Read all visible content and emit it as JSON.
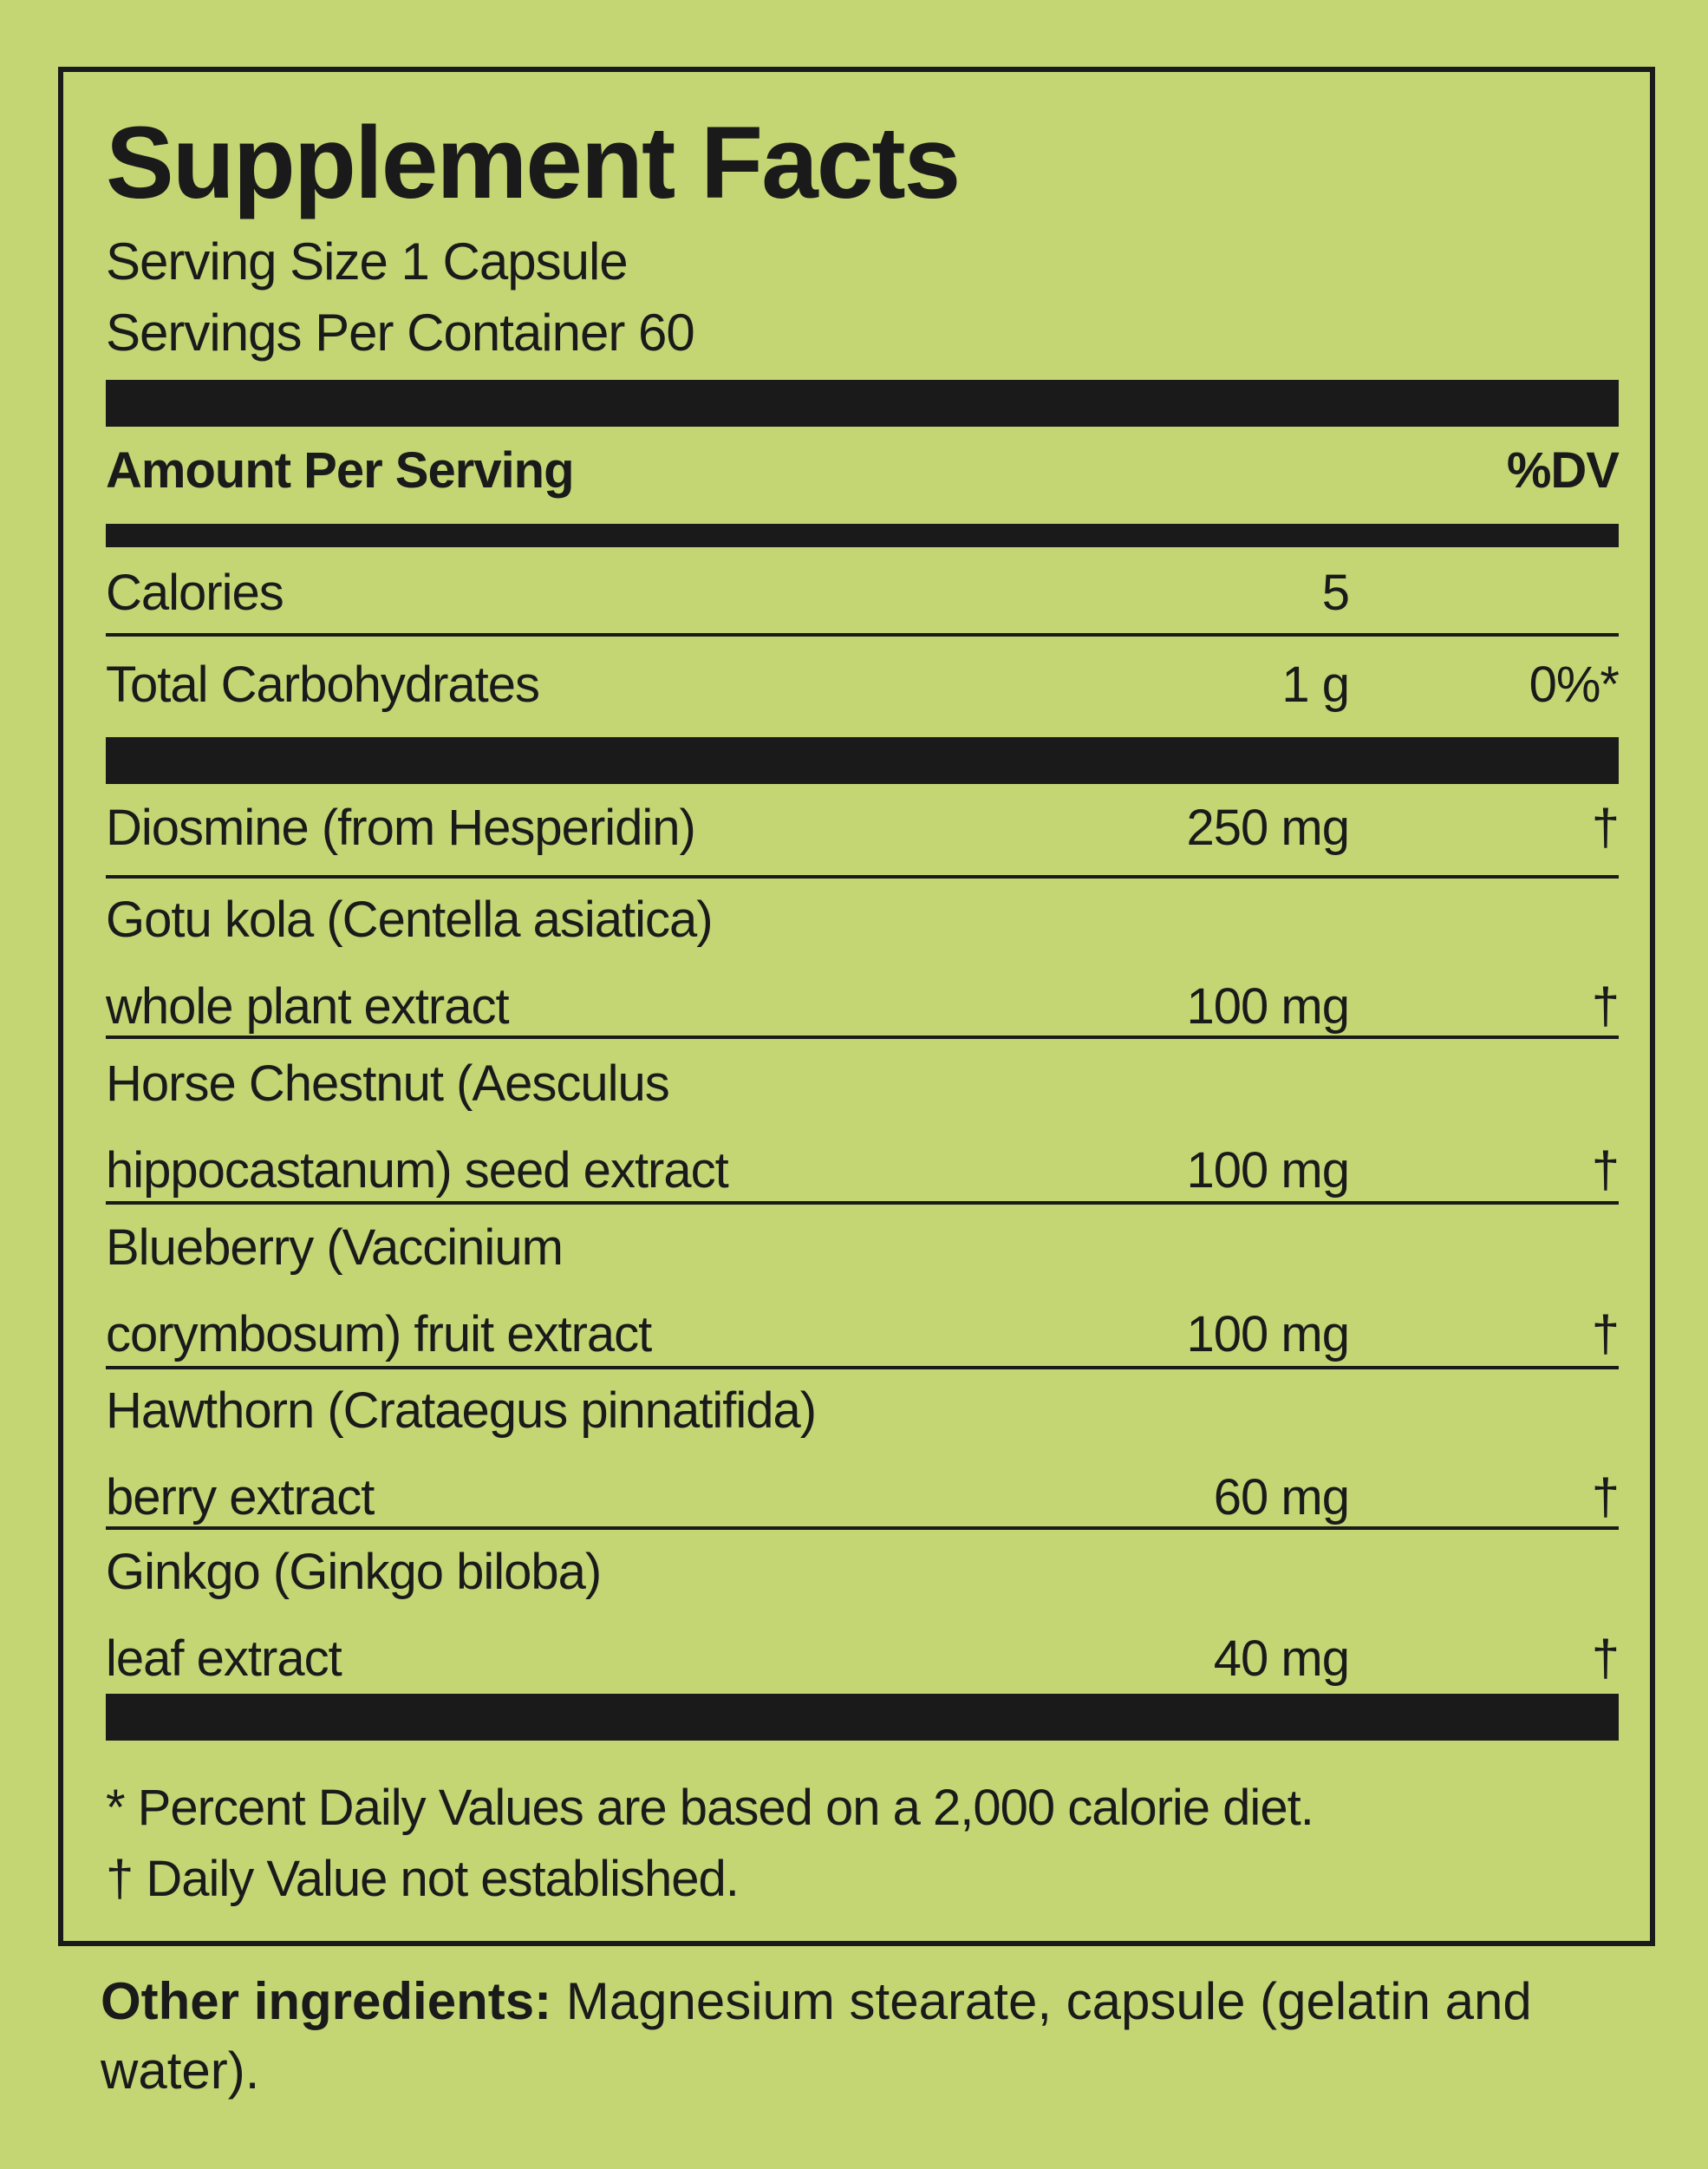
{
  "title": "Supplement Facts",
  "serving_size": "Serving Size 1 Capsule",
  "servings_per_container": "Servings Per Container 60",
  "header": {
    "amount_label": "Amount Per Serving",
    "dv_label": "%DV"
  },
  "rows": [
    {
      "name": "Calories",
      "amount": "5",
      "dv": ""
    },
    {
      "name": "Total Carbohydrates",
      "amount": "1 g",
      "dv": "0%*"
    },
    {
      "name": "Diosmine (from Hesperidin)",
      "amount": "250 mg",
      "dv": "†"
    },
    {
      "name": "Gotu kola (Centella asiatica)",
      "name2": "whole plant extract",
      "amount": "100 mg",
      "dv": "†"
    },
    {
      "name": "Horse Chestnut (Aesculus",
      "name2": "hippocastanum) seed extract",
      "amount": "100 mg",
      "dv": "†"
    },
    {
      "name": "Blueberry (Vaccinium",
      "name2": "corymbosum) fruit extract",
      "amount": "100 mg",
      "dv": "†"
    },
    {
      "name": "Hawthorn (Crataegus pinnatifida)",
      "name2": "berry extract",
      "amount": "60 mg",
      "dv": "†"
    },
    {
      "name": "Ginkgo (Ginkgo biloba)",
      "name2": "leaf extract",
      "amount": "40 mg",
      "dv": "†"
    }
  ],
  "footnotes": [
    "* Percent Daily Values are based on a 2,000 calorie diet.",
    "† Daily Value not established."
  ],
  "other_ingredients": {
    "label": "Other ingredients:",
    "text": " Magnesium stearate, capsule (gelatin and water)."
  },
  "colors": {
    "background": "#c4d574",
    "ink": "#1b1a1a"
  }
}
